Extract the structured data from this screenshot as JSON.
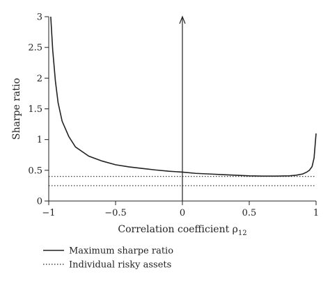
{
  "chart_data": {
    "type": "line",
    "xlabel": "Correlation coefficient ρ",
    "xlabel_subscript": "12",
    "ylabel": "Sharpe ratio",
    "xlim": [
      -1,
      1
    ],
    "ylim": [
      0,
      3
    ],
    "x_ticks": [
      {
        "value": -1,
        "label": "−1"
      },
      {
        "value": -0.5,
        "label": "−0.5"
      },
      {
        "value": 0,
        "label": "0"
      },
      {
        "value": 0.5,
        "label": "0.5"
      },
      {
        "value": 1,
        "label": "1"
      }
    ],
    "y_ticks": [
      {
        "value": 0,
        "label": "0"
      },
      {
        "value": 0.5,
        "label": "0.5"
      },
      {
        "value": 1,
        "label": "1"
      },
      {
        "value": 1.5,
        "label": "1.5"
      },
      {
        "value": 2,
        "label": "2"
      },
      {
        "value": 2.5,
        "label": "2.5"
      },
      {
        "value": 3,
        "label": "3"
      }
    ],
    "grid": false,
    "legend_position": "bottom-left",
    "series": [
      {
        "name": "Maximum sharpe ratio",
        "style": "solid",
        "x": [
          -0.985,
          -0.97,
          -0.95,
          -0.93,
          -0.9,
          -0.85,
          -0.8,
          -0.7,
          -0.6,
          -0.5,
          -0.4,
          -0.3,
          -0.2,
          -0.1,
          0,
          0.1,
          0.2,
          0.3,
          0.4,
          0.5,
          0.6,
          0.7,
          0.8,
          0.85,
          0.9,
          0.93,
          0.95,
          0.97,
          0.985,
          1.0
        ],
        "y": [
          3.0,
          2.45,
          1.95,
          1.6,
          1.3,
          1.05,
          0.88,
          0.73,
          0.65,
          0.59,
          0.555,
          0.53,
          0.505,
          0.485,
          0.47,
          0.45,
          0.44,
          0.43,
          0.42,
          0.41,
          0.405,
          0.405,
          0.41,
          0.42,
          0.44,
          0.47,
          0.5,
          0.56,
          0.7,
          1.1
        ]
      },
      {
        "name": "Individual risky assets",
        "style": "dotted",
        "lines": [
          0.4,
          0.25
        ]
      }
    ]
  }
}
